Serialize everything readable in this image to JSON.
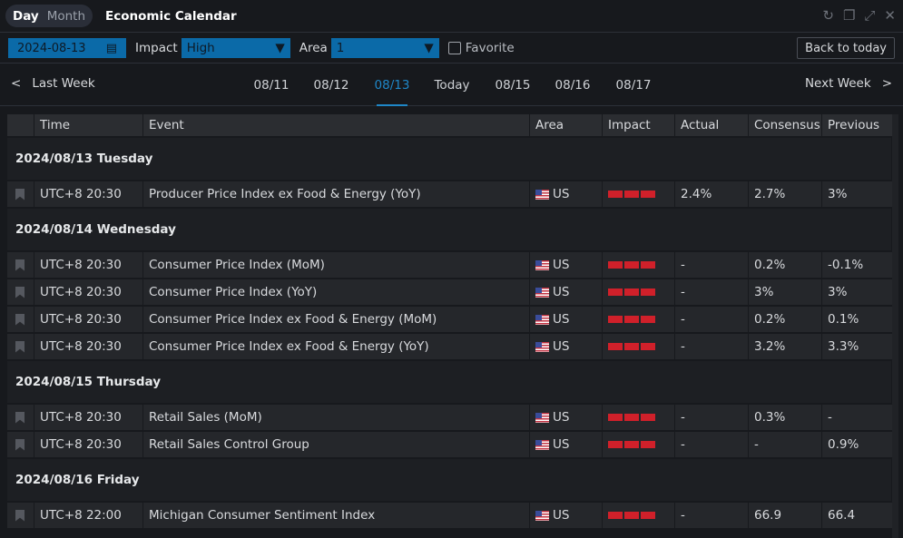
{
  "titlebar": {
    "view_day": "Day",
    "view_month": "Month",
    "title": "Economic Calendar"
  },
  "toolbar": {
    "date": "2024-08-13",
    "impact_label": "Impact",
    "impact_value": "High",
    "area_label": "Area",
    "area_value": "1",
    "favorite_label": "Favorite",
    "back_today": "Back to today"
  },
  "datenav": {
    "prev": "Last Week",
    "next": "Next Week",
    "days": [
      "08/11",
      "08/12",
      "08/13",
      "Today",
      "08/15",
      "08/16",
      "08/17"
    ],
    "active_index": 2
  },
  "colors": {
    "accent": "#1f87c8",
    "impact_high": "#d0202a"
  },
  "table": {
    "headers": [
      "",
      "Time",
      "Event",
      "Area",
      "Impact",
      "Actual",
      "Consensus",
      "Previous"
    ],
    "groups": [
      {
        "date": "2024/08/13 Tuesday",
        "rows": [
          {
            "time": "UTC+8 20:30",
            "event": "Producer Price Index ex Food & Energy (YoY)",
            "area": "US",
            "impact": 3,
            "actual": "2.4%",
            "consensus": "2.7%",
            "previous": "3%"
          }
        ]
      },
      {
        "date": "2024/08/14 Wednesday",
        "rows": [
          {
            "time": "UTC+8 20:30",
            "event": "Consumer Price Index (MoM)",
            "area": "US",
            "impact": 3,
            "actual": "-",
            "consensus": "0.2%",
            "previous": "-0.1%"
          },
          {
            "time": "UTC+8 20:30",
            "event": "Consumer Price Index (YoY)",
            "area": "US",
            "impact": 3,
            "actual": "-",
            "consensus": "3%",
            "previous": "3%"
          },
          {
            "time": "UTC+8 20:30",
            "event": "Consumer Price Index ex Food & Energy (MoM)",
            "area": "US",
            "impact": 3,
            "actual": "-",
            "consensus": "0.2%",
            "previous": "0.1%"
          },
          {
            "time": "UTC+8 20:30",
            "event": "Consumer Price Index ex Food & Energy (YoY)",
            "area": "US",
            "impact": 3,
            "actual": "-",
            "consensus": "3.2%",
            "previous": "3.3%"
          }
        ]
      },
      {
        "date": "2024/08/15 Thursday",
        "rows": [
          {
            "time": "UTC+8 20:30",
            "event": "Retail Sales (MoM)",
            "area": "US",
            "impact": 3,
            "actual": "-",
            "consensus": "0.3%",
            "previous": "-"
          },
          {
            "time": "UTC+8 20:30",
            "event": "Retail Sales Control Group",
            "area": "US",
            "impact": 3,
            "actual": "-",
            "consensus": "-",
            "previous": "0.9%"
          }
        ]
      },
      {
        "date": "2024/08/16 Friday",
        "rows": [
          {
            "time": "UTC+8 22:00",
            "event": "Michigan Consumer Sentiment Index",
            "area": "US",
            "impact": 3,
            "actual": "-",
            "consensus": "66.9",
            "previous": "66.4"
          }
        ]
      }
    ]
  }
}
